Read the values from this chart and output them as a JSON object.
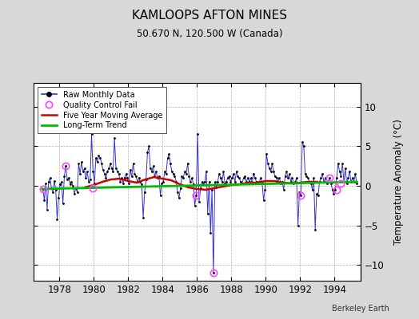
{
  "title": "KAMLOOPS AFTON MINES",
  "subtitle": "50.670 N, 120.500 W (Canada)",
  "ylabel": "Temperature Anomaly (°C)",
  "credit": "Berkeley Earth",
  "xlim": [
    1976.5,
    1995.5
  ],
  "ylim": [
    -12,
    13
  ],
  "yticks": [
    -10,
    -5,
    0,
    5,
    10
  ],
  "xticks": [
    1978,
    1980,
    1982,
    1984,
    1986,
    1988,
    1990,
    1992,
    1994
  ],
  "bg_color": "#d8d8d8",
  "plot_bg_color": "#ffffff",
  "raw_color": "#3333cc",
  "ma_color": "#cc0000",
  "trend_color": "#00bb00",
  "qc_color": "#ff44ff",
  "raw_data_x": [
    1977.042,
    1977.125,
    1977.208,
    1977.292,
    1977.375,
    1977.458,
    1977.542,
    1977.625,
    1977.708,
    1977.792,
    1977.875,
    1977.958,
    1978.042,
    1978.125,
    1978.208,
    1978.292,
    1978.375,
    1978.458,
    1978.542,
    1978.625,
    1978.708,
    1978.792,
    1978.875,
    1978.958,
    1979.042,
    1979.125,
    1979.208,
    1979.292,
    1979.375,
    1979.458,
    1979.542,
    1979.625,
    1979.708,
    1979.792,
    1979.875,
    1979.958,
    1980.042,
    1980.125,
    1980.208,
    1980.292,
    1980.375,
    1980.458,
    1980.542,
    1980.625,
    1980.708,
    1980.792,
    1980.875,
    1980.958,
    1981.042,
    1981.125,
    1981.208,
    1981.292,
    1981.375,
    1981.458,
    1981.542,
    1981.625,
    1981.708,
    1981.792,
    1981.875,
    1981.958,
    1982.042,
    1982.125,
    1982.208,
    1982.292,
    1982.375,
    1982.458,
    1982.542,
    1982.625,
    1982.708,
    1982.792,
    1982.875,
    1982.958,
    1983.042,
    1983.125,
    1983.208,
    1983.292,
    1983.375,
    1983.458,
    1983.542,
    1983.625,
    1983.708,
    1983.792,
    1983.875,
    1983.958,
    1984.042,
    1984.125,
    1984.208,
    1984.292,
    1984.375,
    1984.458,
    1984.542,
    1984.625,
    1984.708,
    1984.792,
    1984.875,
    1984.958,
    1985.042,
    1985.125,
    1985.208,
    1985.292,
    1985.375,
    1985.458,
    1985.542,
    1985.625,
    1985.708,
    1985.792,
    1985.875,
    1985.958,
    1986.042,
    1986.125,
    1986.208,
    1986.292,
    1986.375,
    1986.458,
    1986.542,
    1986.625,
    1986.708,
    1986.792,
    1986.875,
    1986.958,
    1987.042,
    1987.125,
    1987.208,
    1987.292,
    1987.375,
    1987.458,
    1987.542,
    1987.625,
    1987.708,
    1987.792,
    1987.875,
    1987.958,
    1988.042,
    1988.125,
    1988.208,
    1988.292,
    1988.375,
    1988.458,
    1988.542,
    1988.625,
    1988.708,
    1988.792,
    1988.875,
    1988.958,
    1989.042,
    1989.125,
    1989.208,
    1989.292,
    1989.375,
    1989.458,
    1989.542,
    1989.625,
    1989.708,
    1989.792,
    1989.875,
    1989.958,
    1990.042,
    1990.125,
    1990.208,
    1990.292,
    1990.375,
    1990.458,
    1990.542,
    1990.625,
    1990.708,
    1990.792,
    1990.875,
    1990.958,
    1991.042,
    1991.125,
    1991.208,
    1991.292,
    1991.375,
    1991.458,
    1991.542,
    1991.625,
    1991.708,
    1991.792,
    1991.875,
    1991.958,
    1992.042,
    1992.125,
    1992.208,
    1992.292,
    1992.375,
    1992.458,
    1992.542,
    1992.625,
    1992.708,
    1992.792,
    1992.875,
    1992.958,
    1993.042,
    1993.125,
    1993.208,
    1993.292,
    1993.375,
    1993.458,
    1993.542,
    1993.625,
    1993.708,
    1993.792,
    1993.875,
    1993.958,
    1994.042,
    1994.125,
    1994.208,
    1994.292,
    1994.375,
    1994.458,
    1994.542,
    1994.625,
    1994.708,
    1994.792,
    1994.875,
    1994.958,
    1995.042,
    1995.125,
    1995.208,
    1995.292
  ],
  "raw_data_y": [
    -0.4,
    -1.8,
    0.3,
    -3.0,
    0.5,
    1.0,
    -0.3,
    -0.8,
    0.6,
    -0.5,
    -4.2,
    -1.5,
    0.2,
    0.5,
    -2.2,
    1.2,
    2.5,
    0.8,
    1.0,
    0.2,
    0.5,
    0.0,
    -1.0,
    -0.3,
    -0.8,
    2.8,
    1.5,
    3.0,
    1.8,
    2.2,
    1.0,
    1.8,
    0.5,
    0.8,
    6.5,
    1.8,
    0.3,
    3.5,
    3.0,
    3.8,
    3.5,
    2.8,
    2.0,
    1.5,
    1.0,
    1.8,
    2.2,
    2.8,
    2.2,
    1.8,
    6.0,
    2.2,
    1.8,
    1.5,
    0.5,
    1.0,
    0.3,
    1.0,
    1.5,
    1.0,
    0.3,
    2.0,
    1.2,
    2.8,
    1.5,
    1.2,
    0.5,
    1.0,
    0.5,
    0.2,
    -4.0,
    -0.8,
    0.8,
    4.2,
    5.0,
    2.2,
    1.8,
    2.5,
    1.2,
    1.8,
    1.0,
    1.2,
    -1.2,
    0.3,
    0.5,
    1.8,
    1.5,
    3.5,
    4.0,
    2.8,
    1.8,
    1.5,
    1.2,
    0.5,
    -0.8,
    -1.5,
    -0.3,
    1.2,
    1.0,
    1.8,
    1.5,
    2.8,
    1.2,
    0.5,
    1.0,
    0.2,
    -2.5,
    -1.2,
    6.5,
    -2.0,
    -0.3,
    0.5,
    0.2,
    0.5,
    1.8,
    -3.5,
    0.5,
    -6.0,
    -0.5,
    -11.0,
    0.5,
    -0.2,
    0.5,
    1.5,
    1.0,
    0.5,
    1.8,
    0.3,
    0.5,
    1.0,
    1.2,
    0.5,
    1.0,
    1.5,
    0.5,
    1.8,
    1.2,
    1.0,
    0.5,
    0.3,
    1.0,
    1.2,
    0.5,
    1.0,
    0.5,
    1.0,
    0.3,
    1.5,
    1.0,
    0.5,
    0.3,
    0.5,
    1.0,
    0.3,
    -1.8,
    -0.5,
    4.0,
    2.8,
    2.2,
    1.8,
    2.8,
    1.8,
    1.2,
    1.0,
    0.5,
    1.0,
    0.3,
    0.5,
    -0.5,
    1.2,
    1.8,
    1.0,
    1.5,
    0.5,
    1.0,
    0.3,
    0.5,
    1.0,
    -5.0,
    -0.8,
    -1.2,
    5.5,
    5.0,
    1.5,
    1.2,
    1.0,
    0.5,
    0.3,
    -0.5,
    1.0,
    -5.5,
    -1.0,
    -1.2,
    0.5,
    1.0,
    1.5,
    0.5,
    1.0,
    0.3,
    0.5,
    1.0,
    0.3,
    -0.5,
    -1.0,
    -0.5,
    1.0,
    2.8,
    1.8,
    1.2,
    2.8,
    0.5,
    2.2,
    0.3,
    1.0,
    1.8,
    0.5,
    1.0,
    0.5,
    1.5,
    0.3
  ],
  "qc_fails_x": [
    1977.042,
    1978.375,
    1979.958,
    1985.958,
    1986.958,
    1992.042,
    1993.708,
    1994.125,
    1994.375
  ],
  "qc_fails_y": [
    -0.4,
    2.5,
    -0.3,
    -1.2,
    -11.0,
    -1.2,
    1.0,
    -0.5,
    0.3
  ],
  "moving_avg_x": [
    1979.5,
    1980.0,
    1980.5,
    1981.0,
    1981.5,
    1982.0,
    1982.5,
    1983.0,
    1983.5,
    1984.0,
    1984.5,
    1985.0,
    1985.5,
    1986.0,
    1986.5,
    1987.0,
    1987.5,
    1988.0,
    1988.5,
    1989.0,
    1989.5,
    1990.0,
    1990.5,
    1991.0,
    1991.5,
    1992.0,
    1992.5,
    1993.0
  ],
  "moving_avg_y": [
    -0.2,
    0.1,
    0.5,
    0.8,
    0.9,
    0.6,
    0.4,
    0.8,
    1.1,
    0.9,
    0.7,
    0.2,
    -0.2,
    -0.4,
    -0.5,
    -0.3,
    -0.1,
    0.1,
    0.2,
    0.4,
    0.4,
    0.6,
    0.6,
    0.4,
    0.3,
    0.4,
    0.5,
    0.5
  ],
  "trend_x": [
    1977.0,
    1995.3
  ],
  "trend_y": [
    -0.4,
    0.5
  ]
}
